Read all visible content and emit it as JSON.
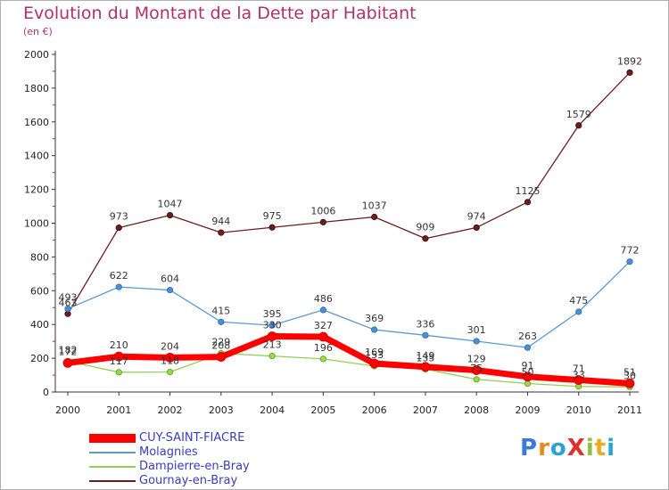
{
  "chart_data": {
    "type": "line",
    "title": "Evolution du Montant de la Dette par Habitant",
    "subtitle": "(en €)",
    "x": [
      "2000",
      "2001",
      "2002",
      "2003",
      "2004",
      "2005",
      "2006",
      "2007",
      "2008",
      "2009",
      "2010",
      "2011"
    ],
    "ylim": [
      0,
      2000
    ],
    "yticks": [
      0,
      200,
      400,
      600,
      800,
      1000,
      1200,
      1400,
      1600,
      1800,
      2000
    ],
    "grid": false,
    "legend_position": "bottom-left",
    "series": [
      {
        "name": "CUY-SAINT-FIACRE",
        "color": "#ff0000",
        "values": [
          172,
          210,
          204,
          208,
          330,
          327,
          169,
          149,
          129,
          91,
          71,
          51
        ]
      },
      {
        "name": "Molagnies",
        "color": "#5b9bd5",
        "values": [
          493,
          622,
          604,
          415,
          395,
          486,
          369,
          336,
          301,
          263,
          475,
          772
        ]
      },
      {
        "name": "Dampierre-en-Bray",
        "color": "#92d050",
        "values": [
          182,
          117,
          118,
          229,
          213,
          196,
          153,
          135,
          75,
          50,
          33,
          30
        ]
      },
      {
        "name": "Gournay-en-Bray",
        "color": "#6b1e1e",
        "values": [
          463,
          973,
          1047,
          944,
          975,
          1006,
          1037,
          909,
          974,
          1125,
          1579,
          1892
        ]
      }
    ]
  },
  "logo": {
    "text": "ProXiti",
    "letters": [
      "P",
      "r",
      "o",
      "X",
      "i",
      "t",
      "i"
    ],
    "colors": [
      "#3a7bd5",
      "#e88a1a",
      "#2aa5d0",
      "#e0302a",
      "#8ac43f",
      "#f0a81c",
      "#2aa5d0"
    ]
  }
}
